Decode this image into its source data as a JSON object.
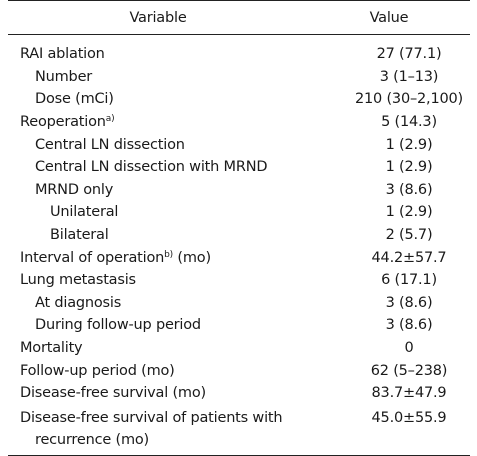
{
  "header": {
    "variable": "Variable",
    "value": "Value"
  },
  "rows": [
    {
      "label": "RAI ablation",
      "value": "27 (77.1)"
    },
    {
      "label": "Number",
      "value": "3 (1–13)"
    },
    {
      "label": "Dose (mCi)",
      "value": "210 (30–2,100)"
    },
    {
      "label": "Reoperation",
      "sup": "a)",
      "value": "5 (14.3)"
    },
    {
      "label": "Central LN dissection",
      "value": "1 (2.9)"
    },
    {
      "label": "Central LN dissection with MRND",
      "value": "1 (2.9)"
    },
    {
      "label": "MRND only",
      "value": "3 (8.6)"
    },
    {
      "label": "Unilateral",
      "value": "1 (2.9)"
    },
    {
      "label": "Bilateral",
      "value": "2 (5.7)"
    },
    {
      "label": "Interval of operation",
      "sup": "b)",
      "label_suffix": " (mo)",
      "value": "44.2±57.7"
    },
    {
      "label": "Lung metastasis",
      "value": "6 (17.1)"
    },
    {
      "label": "At diagnosis",
      "value": "3 (8.6)"
    },
    {
      "label": "During follow-up period",
      "value": "3 (8.6)"
    },
    {
      "label": "Mortality",
      "value": "0"
    },
    {
      "label": "Follow-up period (mo)",
      "value": "62 (5–238)"
    },
    {
      "label": "Disease-free survival (mo)",
      "value": "83.7±47.9"
    },
    {
      "label": "Disease-free survival of patients with",
      "label_line2": "recurrence (mo)",
      "value": "45.0±55.9"
    }
  ]
}
